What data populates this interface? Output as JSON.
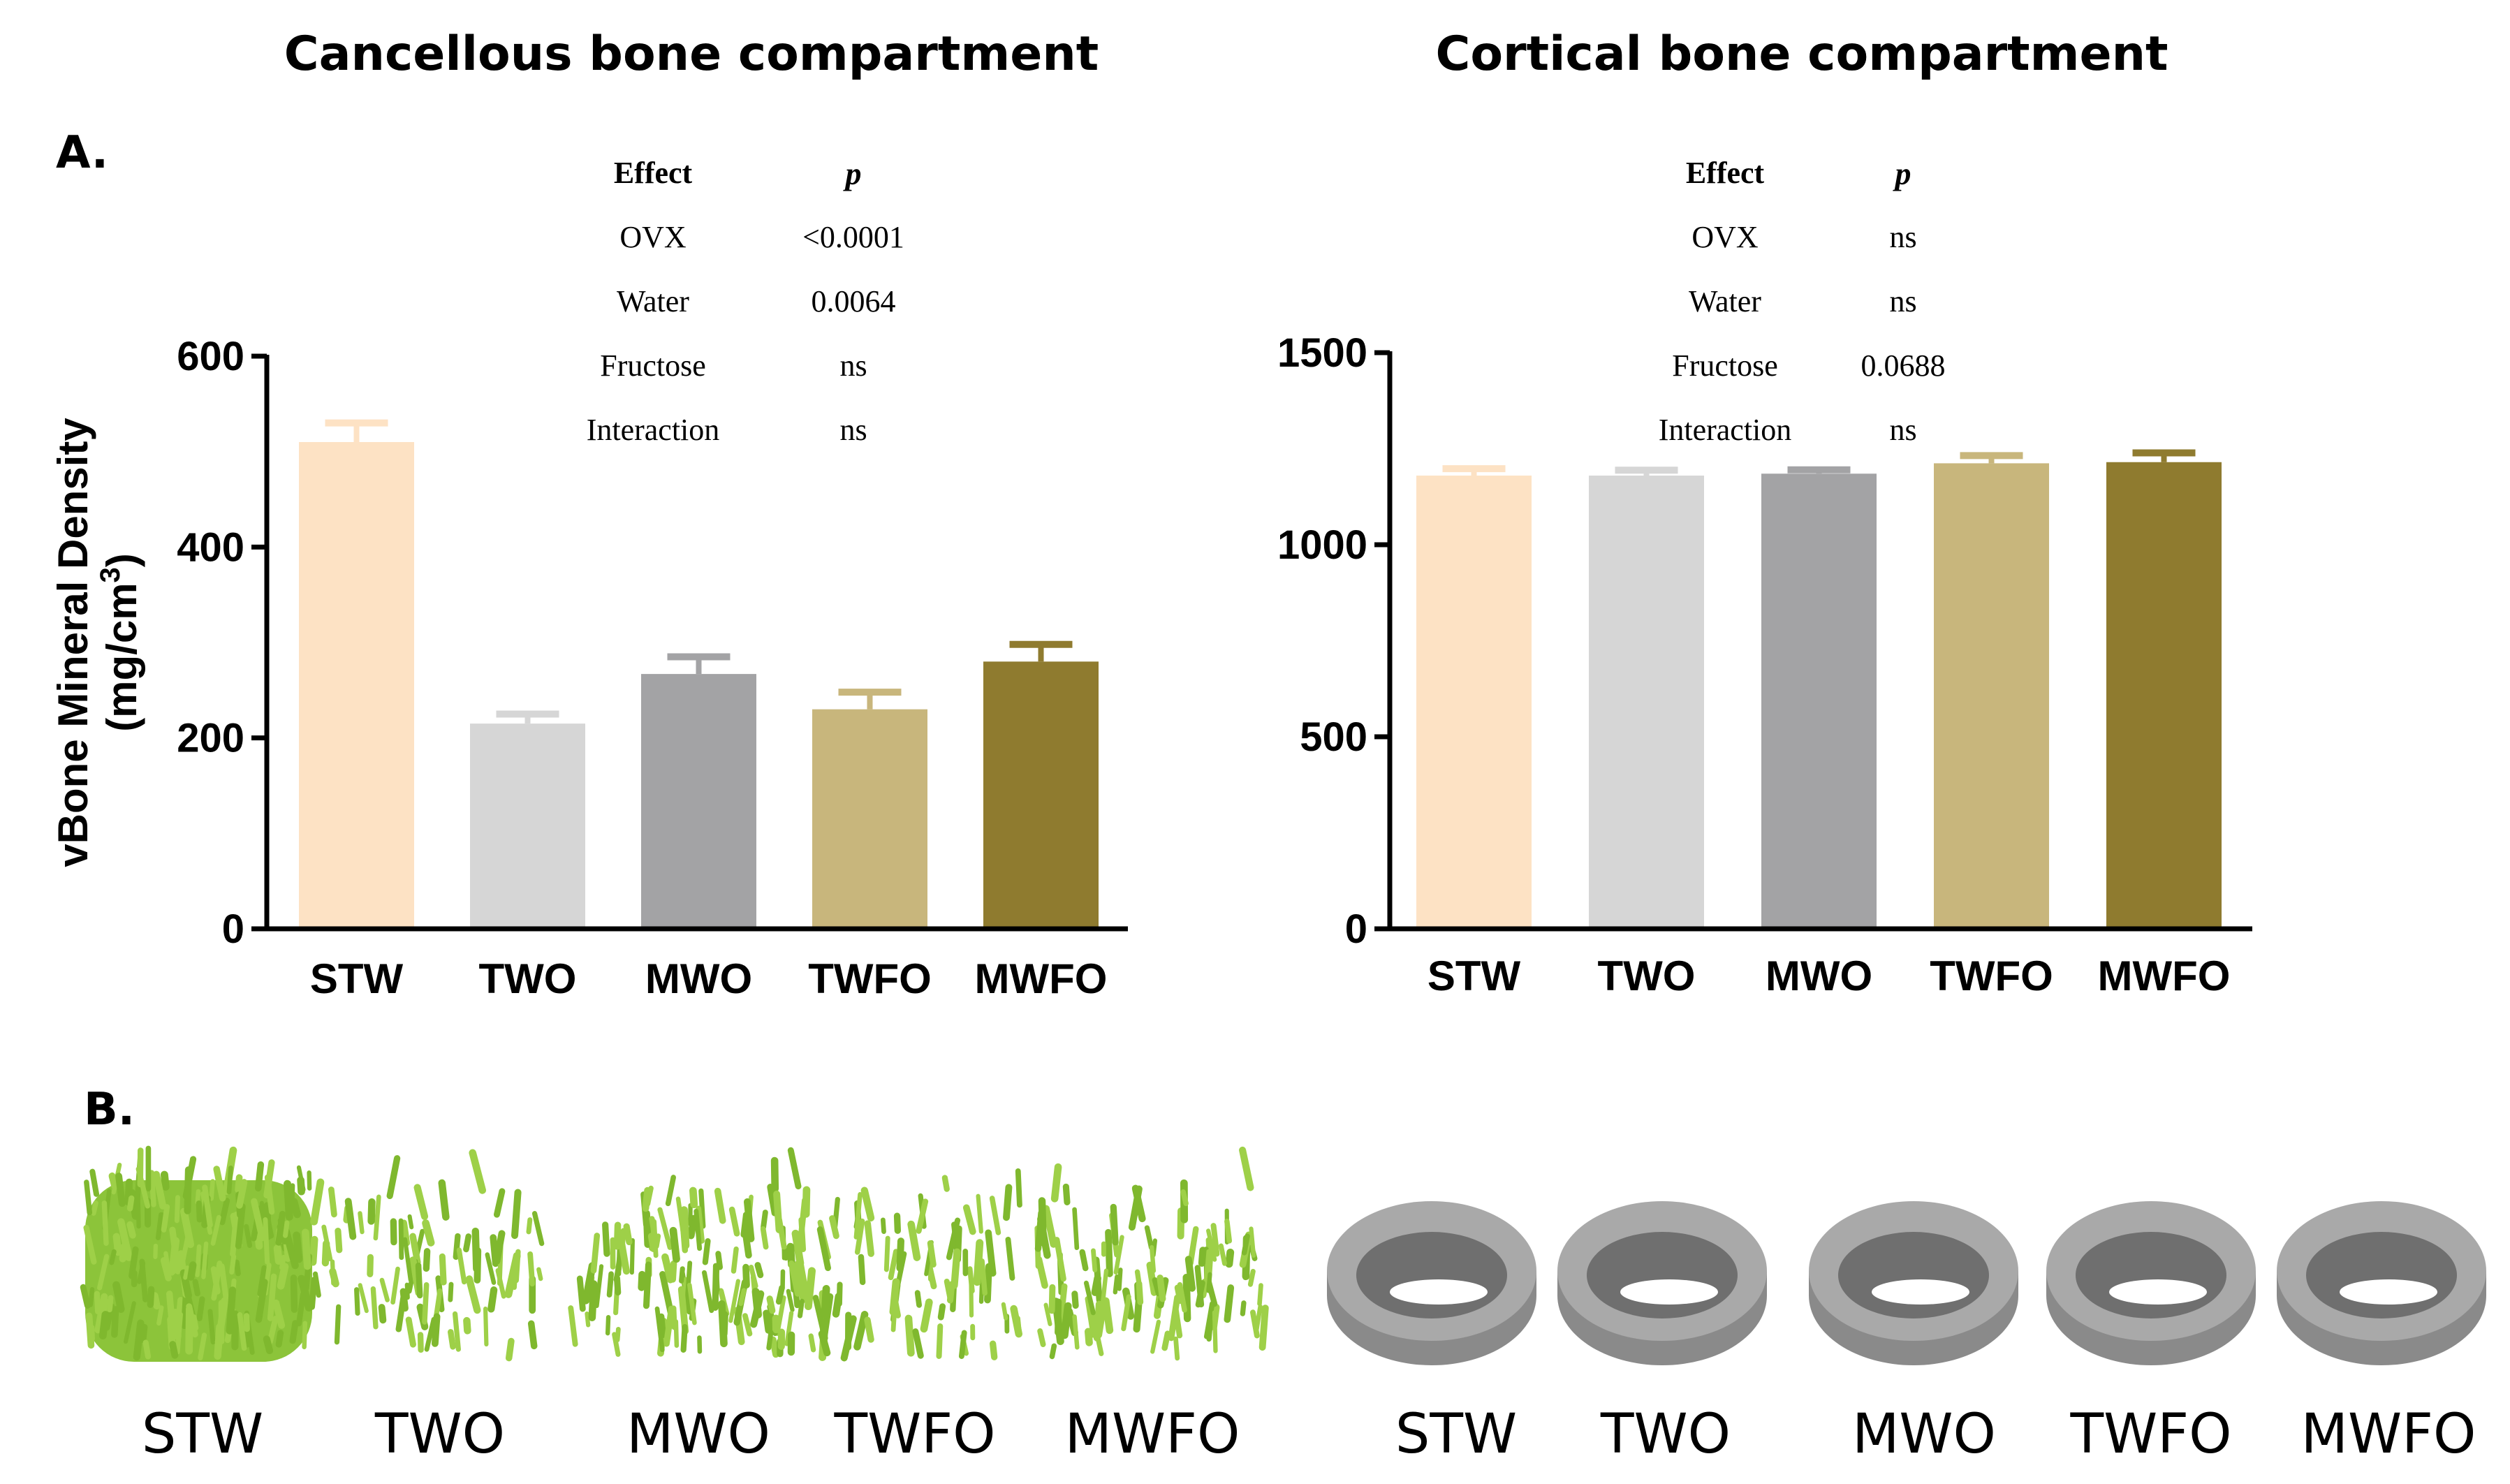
{
  "titles": {
    "left": "Cancellous bone compartment",
    "right": "Cortical bone compartment"
  },
  "panel_labels": {
    "a": "A.",
    "b": "B."
  },
  "y_axis_label": {
    "line1": "vBone Mineral Density",
    "line2_prefix": "(mg/cm",
    "line2_sup": "3",
    "line2_suffix": ")"
  },
  "stats_tables": [
    {
      "header_effect": "Effect",
      "header_p": "p",
      "rows": [
        {
          "effect": "OVX",
          "p": "<0.0001"
        },
        {
          "effect": "Water",
          "p": "0.0064"
        },
        {
          "effect": "Fructose",
          "p": "ns"
        },
        {
          "effect": "Interaction",
          "p": "ns"
        }
      ]
    },
    {
      "header_effect": "Effect",
      "header_p": "p",
      "rows": [
        {
          "effect": "OVX",
          "p": "ns"
        },
        {
          "effect": "Water",
          "p": "ns"
        },
        {
          "effect": "Fructose",
          "p": "0.0688"
        },
        {
          "effect": "Interaction",
          "p": "ns"
        }
      ]
    }
  ],
  "chart_data": [
    {
      "type": "bar",
      "title": "Cancellous bone compartment",
      "categories": [
        "STW",
        "TWO",
        "MWO",
        "TWFO",
        "MWFO"
      ],
      "values": [
        510,
        215,
        267,
        230,
        280
      ],
      "errors": [
        20,
        10,
        18,
        18,
        18
      ],
      "colors": [
        "#fde2c4",
        "#d6d6d6",
        "#a3a3a5",
        "#c8b67c",
        "#8f7b2f"
      ],
      "ylabel": "vBone Mineral Density (mg/cm3)",
      "ylim": [
        0,
        600
      ],
      "yticks": [
        "0",
        "200",
        "400",
        "600"
      ],
      "ytick_values": [
        0,
        200,
        400,
        600
      ]
    },
    {
      "type": "bar",
      "title": "Cortical bone compartment",
      "categories": [
        "STW",
        "TWO",
        "MWO",
        "TWFO",
        "MWFO"
      ],
      "values": [
        1180,
        1180,
        1185,
        1212,
        1215
      ],
      "errors": [
        18,
        14,
        10,
        20,
        24
      ],
      "colors": [
        "#fde2c4",
        "#d6d6d6",
        "#a3a3a5",
        "#c8b67c",
        "#8f7b2f"
      ],
      "ylabel": "",
      "ylim": [
        0,
        1500
      ],
      "yticks": [
        "0",
        "500",
        "1000",
        "1500"
      ],
      "ytick_values": [
        0,
        500,
        1000,
        1500
      ]
    }
  ],
  "image_row": {
    "cancellous_labels": [
      "STW",
      "TWO",
      "MWO",
      "TWFO",
      "MWFO"
    ],
    "cortical_labels": [
      "STW",
      "TWO",
      "MWO",
      "TWFO",
      "MWFO"
    ],
    "cancellous_color": "#8cc43a",
    "cortical_color": "#a9a9a9"
  }
}
